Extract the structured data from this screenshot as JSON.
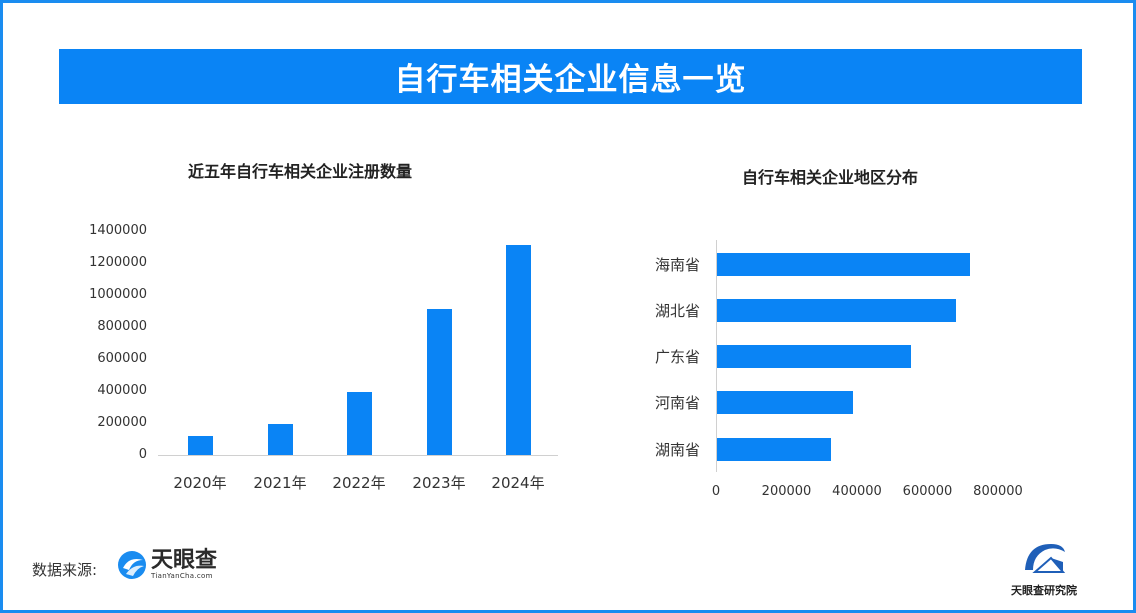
{
  "header": {
    "title": "自行车相关企业信息一览"
  },
  "colors": {
    "accent": "#0a84f5",
    "border": "#1a8cf0",
    "axis": "#d0d0d0"
  },
  "chart_data": [
    {
      "type": "bar",
      "title": "近五年自行车相关企业注册数量",
      "categories": [
        "2020年",
        "2021年",
        "2022年",
        "2023年",
        "2024年"
      ],
      "values": [
        120000,
        195000,
        395000,
        915000,
        1315000
      ],
      "xlabel": "",
      "ylabel": "",
      "ylim": [
        0,
        1400000
      ],
      "yticks": [
        "0",
        "200000",
        "400000",
        "600000",
        "800000",
        "1000000",
        "1200000",
        "1400000"
      ],
      "grid": false,
      "legend": null
    },
    {
      "type": "bar",
      "orientation": "horizontal",
      "title": "自行车相关企业地区分布",
      "categories": [
        "海南省",
        "湖北省",
        "广东省",
        "河南省",
        "湖南省"
      ],
      "values": [
        718000,
        678000,
        550000,
        386000,
        323000
      ],
      "xlabel": "",
      "ylabel": "",
      "xlim": [
        0,
        800000
      ],
      "xticks": [
        "0",
        "200000",
        "400000",
        "600000",
        "800000"
      ],
      "grid": false,
      "legend": null
    }
  ],
  "footer": {
    "source_label": "数据来源:",
    "source_logo_name": "天眼查",
    "source_logo_sub": "TianYanCha.com",
    "institute_name": "天眼查研究院"
  }
}
